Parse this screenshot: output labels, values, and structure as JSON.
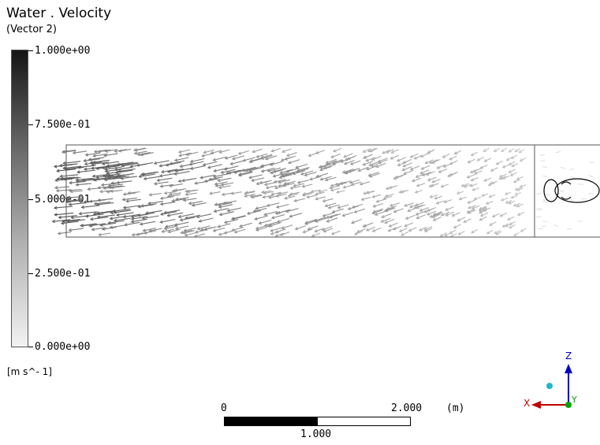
{
  "legend": {
    "title": "Water . Velocity",
    "subtitle": "(Vector  2)",
    "ticks": [
      "1.000e+00",
      "7.500e-01",
      "5.000e-01",
      "2.500e-01",
      "0.000e+00"
    ],
    "units": "[m  s^- 1]"
  },
  "scale_bar": {
    "left_label": "0",
    "right_label": "2.000",
    "unit_label": "(m)",
    "mid_label": "1.000"
  },
  "axes": {
    "x_label": "X",
    "z_label": "Z",
    "y_label": "Y",
    "colors": {
      "x": "#c00000",
      "y": "#00a000",
      "z": "#0000c0",
      "dot": "#20b8c8"
    }
  },
  "vector_field": {
    "description_colors": [
      "#6a6a6a",
      "#9a9a9a",
      "#cfcfcf"
    ]
  }
}
